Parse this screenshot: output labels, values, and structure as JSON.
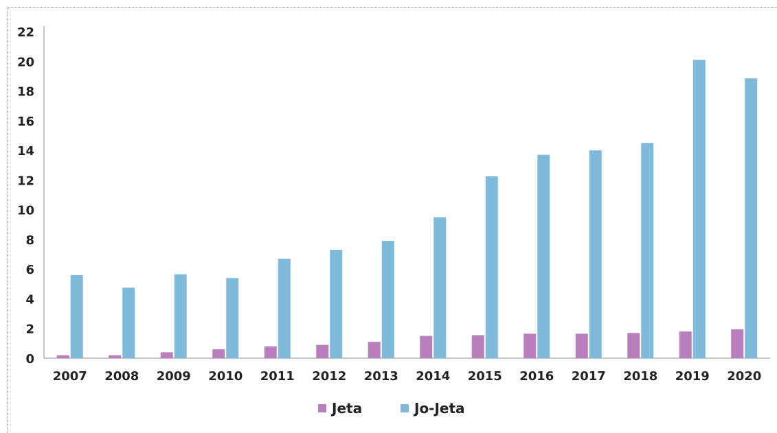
{
  "chart_data": {
    "type": "bar",
    "categories": [
      "2007",
      "2008",
      "2009",
      "2010",
      "2011",
      "2012",
      "2013",
      "2014",
      "2015",
      "2016",
      "2017",
      "2018",
      "2019",
      "2020"
    ],
    "series": [
      {
        "name": "Jeta",
        "color": "#b97fbd",
        "values": [
          0.2,
          0.2,
          0.4,
          0.6,
          0.8,
          0.9,
          1.1,
          1.5,
          1.55,
          1.65,
          1.65,
          1.7,
          1.8,
          1.95
        ]
      },
      {
        "name": "Jo-Jeta",
        "color": "#7fbadb",
        "values": [
          5.6,
          4.75,
          5.65,
          5.4,
          6.7,
          7.3,
          7.9,
          9.5,
          12.25,
          13.7,
          14.0,
          14.5,
          20.1,
          18.85
        ]
      }
    ],
    "yticks": [
      "0",
      "2",
      "4",
      "6",
      "8",
      "10",
      "12",
      "14",
      "16",
      "18",
      "20",
      "22"
    ],
    "ylim": [
      0,
      22
    ],
    "grid": false,
    "legend_position": "bottom-center",
    "title": "",
    "xlabel": "",
    "ylabel": ""
  }
}
